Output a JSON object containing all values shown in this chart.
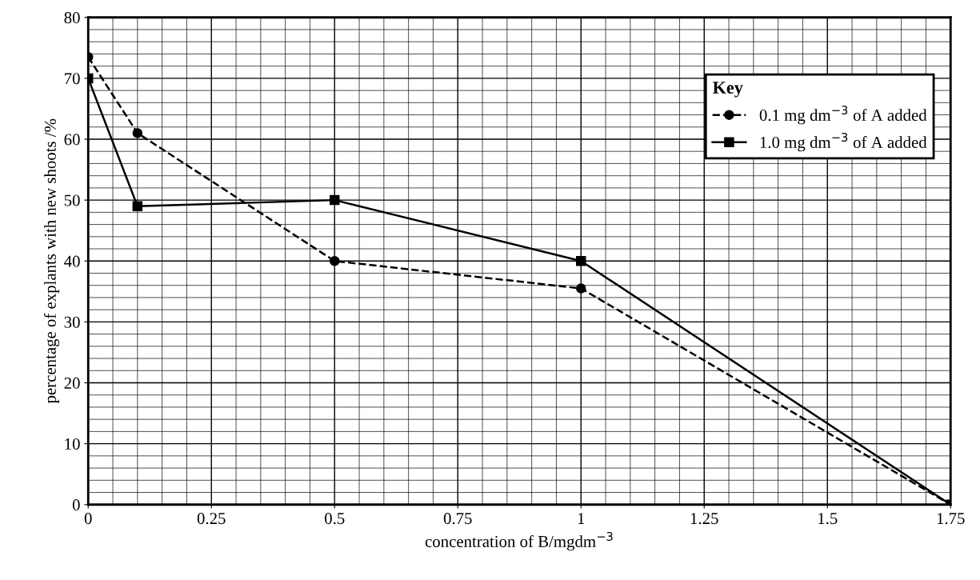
{
  "chart_data": {
    "type": "line",
    "xlabel": "concentration of B/mgdm$^{−3}$",
    "ylabel": "percentage of explants with new shoots /%",
    "legend_title": "Key",
    "series": [
      {
        "name": "0.1 mg dm$^{−3}$ of A added",
        "color": "#000000",
        "line_style": "dashed",
        "marker": "circle",
        "x": [
          0,
          0.1,
          0.5,
          1,
          1.75
        ],
        "values": [
          73.5,
          61,
          40,
          35.5,
          0
        ]
      },
      {
        "name": "1.0 mg dm$^{−3}$ of A added",
        "color": "#000000",
        "line_style": "solid",
        "marker": "square",
        "x": [
          0,
          0.1,
          0.5,
          1,
          1.75
        ],
        "values": [
          70,
          49,
          50,
          40,
          0
        ]
      }
    ],
    "xlim": [
      0,
      1.75
    ],
    "ylim": [
      0,
      80
    ],
    "xticks": [
      0,
      0.25,
      0.5,
      0.75,
      1,
      1.25,
      1.5,
      1.75
    ],
    "yticks": [
      0,
      10,
      20,
      30,
      40,
      50,
      60,
      70,
      80
    ],
    "grid": true,
    "legend": "top right"
  }
}
